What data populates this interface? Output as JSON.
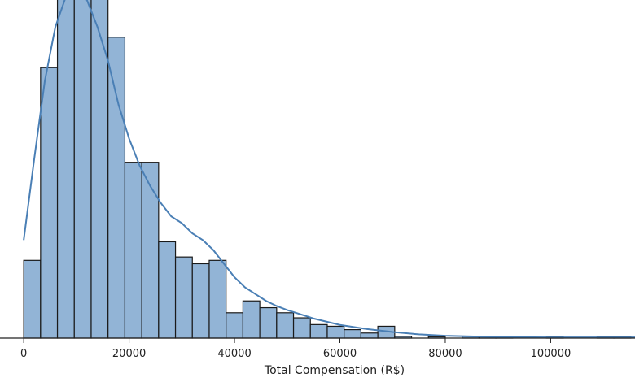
{
  "chart_data": {
    "type": "bar",
    "title": "",
    "xlabel": "Total Compensation (R$)",
    "ylabel": "",
    "xlim": [
      -4500,
      116000
    ],
    "ylim": [
      0,
      100
    ],
    "grid": false,
    "bar_color": "#92b4d6",
    "edge_color": "#1a1a1a",
    "kde_color": "#4a7fb5",
    "x_ticks": [
      0,
      20000,
      40000,
      60000,
      80000,
      100000
    ],
    "x_tick_labels": [
      "0",
      "20000",
      "40000",
      "60000",
      "80000",
      "100000"
    ],
    "bin_edges": [
      0,
      3200,
      6400,
      9600,
      12800,
      16000,
      19200,
      22400,
      25600,
      28800,
      32000,
      35200,
      38400,
      41600,
      44800,
      48000,
      51200,
      54400,
      57600,
      60800,
      64000,
      67200,
      70400,
      73600,
      76800,
      80000,
      83200,
      86400,
      89600,
      92800,
      96000,
      99200,
      102400,
      105600,
      108800,
      112000,
      115200
    ],
    "counts": [
      23,
      80,
      104,
      113,
      104,
      89,
      52,
      52,
      28.5,
      24,
      22,
      23,
      7.5,
      11,
      9,
      7.5,
      6,
      4,
      3.5,
      2.5,
      1.5,
      3.5,
      0.5,
      0,
      0.4,
      0,
      0.5,
      0.5,
      0.5,
      0,
      0,
      0.5,
      0,
      0,
      0.5,
      0.5
    ],
    "kde": {
      "x": [
        0,
        2000,
        4000,
        6000,
        8000,
        10000,
        12000,
        14000,
        16000,
        18000,
        20000,
        22000,
        24000,
        26000,
        28000,
        30000,
        32000,
        34000,
        36000,
        38000,
        40000,
        42000,
        44000,
        46000,
        48000,
        50000,
        55000,
        60000,
        65000,
        70000,
        75000,
        80000,
        90000,
        100000,
        116000
      ],
      "y": [
        29,
        53,
        76,
        92,
        101,
        103,
        100,
        92,
        82,
        69,
        59,
        51,
        45,
        40,
        36,
        34,
        31,
        29,
        26,
        22,
        18,
        15,
        13,
        11,
        9.5,
        8.3,
        5.8,
        3.9,
        2.7,
        1.8,
        1.1,
        0.7,
        0.3,
        0.2,
        0.2
      ]
    }
  }
}
